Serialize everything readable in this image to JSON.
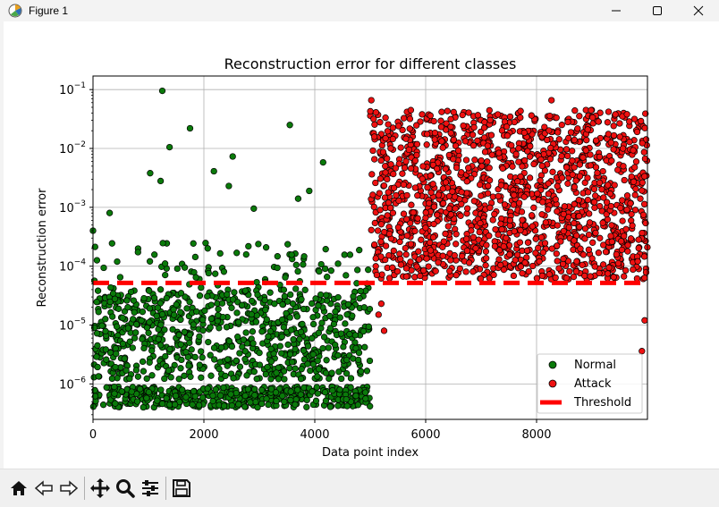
{
  "window": {
    "title": "Figure 1"
  },
  "toolbar": {
    "buttons": [
      "home-icon",
      "back-arrow-icon",
      "forward-arrow-icon",
      "pan-icon",
      "zoom-icon",
      "configure-subplots-icon",
      "save-icon"
    ]
  },
  "colors": {
    "normal": "#0a7a0a",
    "attack": "#ee1111",
    "threshold": "#ff0000",
    "grid": "#b0b0b0"
  },
  "chart_data": {
    "type": "scatter",
    "title": "Reconstruction error for different classes",
    "xlabel": "Data point index",
    "ylabel": "Reconstruction error",
    "yscale": "log",
    "xlim": [
      0,
      10000
    ],
    "ylim": [
      2.5e-07,
      0.17
    ],
    "x_ticks": [
      0,
      2000,
      4000,
      6000,
      8000
    ],
    "x_tick_labels": [
      "0",
      "2000",
      "4000",
      "6000",
      "8000"
    ],
    "y_ticks": [
      1e-06,
      1e-05,
      0.0001,
      0.001,
      0.01,
      0.1
    ],
    "y_tick_labels": [
      {
        "base": "10",
        "exp": "−6"
      },
      {
        "base": "10",
        "exp": "−5"
      },
      {
        "base": "10",
        "exp": "−4"
      },
      {
        "base": "10",
        "exp": "−3"
      },
      {
        "base": "10",
        "exp": "−2"
      },
      {
        "base": "10",
        "exp": "−1"
      }
    ],
    "grid": true,
    "legend_position": "lower-right",
    "threshold": 5.2e-05,
    "series": [
      {
        "name": "Normal",
        "x_range": [
          0,
          5000
        ],
        "bulk_range": [
          4e-07,
          4e-05
        ],
        "notable_points": [
          {
            "x": 1250,
            "y": 0.095
          },
          {
            "x": 1750,
            "y": 0.022
          },
          {
            "x": 3550,
            "y": 0.025
          },
          {
            "x": 1380,
            "y": 0.0105
          },
          {
            "x": 2520,
            "y": 0.0073
          },
          {
            "x": 4150,
            "y": 0.0058
          },
          {
            "x": 1030,
            "y": 0.0038
          },
          {
            "x": 2180,
            "y": 0.0041
          },
          {
            "x": 1220,
            "y": 0.0028
          },
          {
            "x": 2450,
            "y": 0.0023
          },
          {
            "x": 3900,
            "y": 0.0019
          },
          {
            "x": 3700,
            "y": 0.0014
          },
          {
            "x": 2900,
            "y": 0.00095
          },
          {
            "x": 0,
            "y": 0.0004
          },
          {
            "x": 300,
            "y": 0.0008
          }
        ]
      },
      {
        "name": "Attack",
        "x_range": [
          5000,
          10000
        ],
        "bulk_range": [
          6e-05,
          0.045
        ],
        "notable_points": [
          {
            "x": 5020,
            "y": 0.066
          },
          {
            "x": 8270,
            "y": 0.066
          },
          {
            "x": 9950,
            "y": 1.2e-05
          },
          {
            "x": 9900,
            "y": 3.6e-06
          },
          {
            "x": 5150,
            "y": 1.5e-05
          },
          {
            "x": 5200,
            "y": 2.3e-05
          },
          {
            "x": 5250,
            "y": 8e-06
          }
        ]
      },
      {
        "name": "Threshold",
        "style": "dashed"
      }
    ]
  }
}
